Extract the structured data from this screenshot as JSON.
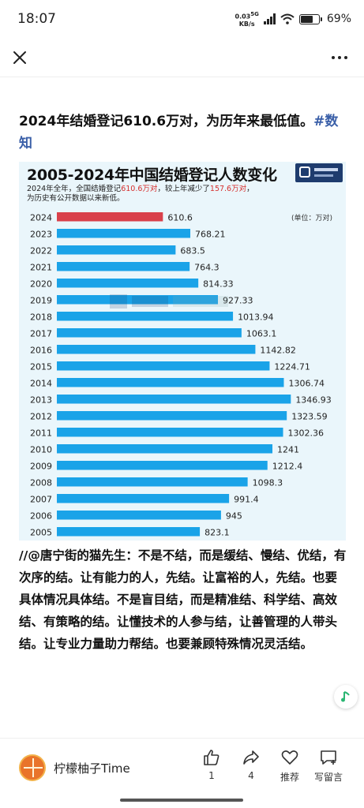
{
  "status_bar": {
    "time": "18:07",
    "net_speed_value": "0.03",
    "net_speed_unit": "KB/s",
    "network": "5G",
    "battery_percent": "69%",
    "battery_level": 0.69
  },
  "top_bar": {
    "close_icon": "close-icon",
    "more_icon": "more-icon"
  },
  "post": {
    "title": "2024年结婚登记610.6万对，为历年来最低值。",
    "hashtag": "#数知"
  },
  "chart_image": {
    "title": "2005-2024年中国结婚登记人数变化",
    "subtitle_part1": "2024年全年，全国结婚登记",
    "subtitle_hl1": "610.6万对",
    "subtitle_part2": "，较上年减少了",
    "subtitle_hl2": "157.6万对",
    "subtitle_part3": "，",
    "subtitle_line2": "为历史有公开数据以来新低。",
    "unit": "(单位：万对)"
  },
  "chart_data": {
    "type": "bar",
    "orientation": "horizontal",
    "title": "2005-2024年中国结婚登记人数变化",
    "categories": [
      "2024",
      "2023",
      "2022",
      "2021",
      "2020",
      "2019",
      "2018",
      "2017",
      "2016",
      "2015",
      "2014",
      "2013",
      "2012",
      "2011",
      "2010",
      "2009",
      "2008",
      "2007",
      "2006",
      "2005"
    ],
    "values": [
      610.6,
      768.21,
      683.5,
      764.3,
      814.33,
      927.33,
      1013.94,
      1063.1,
      1142.82,
      1224.71,
      1306.74,
      1346.93,
      1323.59,
      1302.36,
      1241,
      1212.4,
      1098.3,
      991.4,
      945,
      823.1
    ],
    "value_labels": [
      "610.6",
      "768.21",
      "683.5",
      "764.3",
      "814.33",
      "927.33",
      "1013.94",
      "1063.1",
      "1142.82",
      "1224.71",
      "1306.74",
      "1346.93",
      "1323.59",
      "1302.36",
      "1241",
      "1212.4",
      "1098.3",
      "991.4",
      "945",
      "823.1"
    ],
    "unit": "(单位：万对)",
    "highlight_category": "2024",
    "colors": {
      "bar": "#1aa3e8",
      "highlight": "#d9414b",
      "background": "#eaf6fb"
    },
    "xlim": [
      0,
      1400
    ]
  },
  "comment": {
    "text": "//@唐宁街的猫先生：不是不结，而是缓结、慢结、优结，有次序的结。让有能力的人，先结。让富裕的人，先结。也要具体情况具体结。不是盲目结，而是精准结、科学结、高效结、有策略的结。让懂技术的人参与结，让善管理的人带头结。让专业力量助力帮结。也要兼顾特殊情况灵活结。"
  },
  "bottom_bar": {
    "author_name": "柠檬柚子Time",
    "like_count": "1",
    "share_count": "4",
    "recommend_label": "推荐",
    "comment_label": "写留言"
  }
}
